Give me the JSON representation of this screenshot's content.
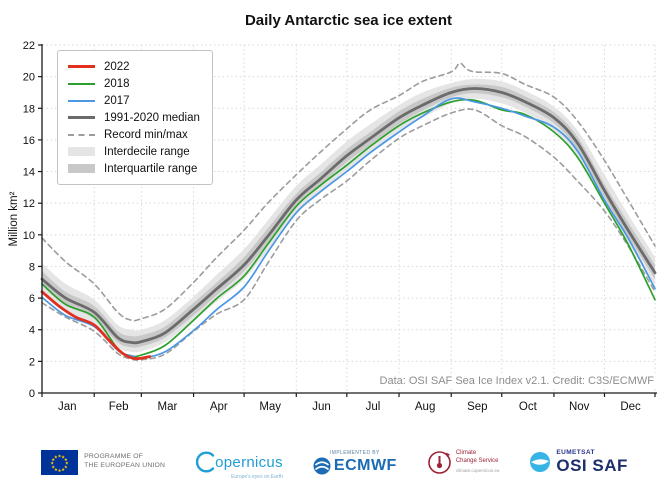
{
  "page": {
    "credit": "Data: OSI SAF Sea Ice Index v2.1. Credit: C3S/ECMWF"
  },
  "chart_data": {
    "type": "line",
    "title": "Daily Antarctic sea ice extent",
    "ylabel": "Million km²",
    "ylim": [
      0,
      22
    ],
    "ytick_step": 2,
    "grid": true,
    "legend_position": "top-left",
    "x_months": [
      "Jan",
      "Feb",
      "Mar",
      "Apr",
      "May",
      "Jun",
      "Jul",
      "Aug",
      "Sep",
      "Oct",
      "Nov",
      "Dec"
    ],
    "month_boundaries": [
      0,
      31,
      59,
      90,
      120,
      151,
      181,
      212,
      243,
      273,
      304,
      334,
      364
    ],
    "month_label_days": [
      15,
      45.5,
      74.5,
      105,
      135.5,
      166,
      196.5,
      227.5,
      258.5,
      288.5,
      319,
      349.5
    ],
    "sample_days": [
      0,
      14,
      31,
      45,
      53,
      59,
      73,
      90,
      104,
      120,
      134,
      151,
      165,
      181,
      195,
      212,
      226,
      243,
      257,
      273,
      287,
      304,
      318,
      334,
      348,
      364
    ],
    "bands": [
      {
        "name": "Interdecile range",
        "fill": "#e5e5e5",
        "upper": [
          8.2,
          6.9,
          5.9,
          4.3,
          4.0,
          4.0,
          4.6,
          6.1,
          7.5,
          9.1,
          10.9,
          13.1,
          14.4,
          15.9,
          17.0,
          18.2,
          19.0,
          19.6,
          19.85,
          19.7,
          19.1,
          18.1,
          16.6,
          13.8,
          11.3,
          8.6
        ],
        "lower": [
          6.4,
          5.2,
          4.3,
          2.9,
          2.6,
          2.65,
          3.2,
          4.6,
          5.8,
          7.2,
          9.0,
          11.3,
          12.6,
          14.1,
          15.2,
          16.6,
          17.4,
          18.3,
          18.6,
          18.3,
          17.7,
          16.6,
          15.0,
          12.0,
          9.5,
          6.8
        ]
      },
      {
        "name": "Interquartile range",
        "fill": "#c8c8c8",
        "upper": [
          7.7,
          6.4,
          5.5,
          3.9,
          3.6,
          3.65,
          4.2,
          5.7,
          7.0,
          8.6,
          10.4,
          12.6,
          13.9,
          15.4,
          16.5,
          17.8,
          18.6,
          19.3,
          19.5,
          19.35,
          18.75,
          17.75,
          16.2,
          13.2,
          10.8,
          8.1
        ],
        "lower": [
          6.8,
          5.6,
          4.7,
          3.2,
          2.9,
          2.95,
          3.5,
          4.9,
          6.2,
          7.7,
          9.5,
          11.8,
          13.1,
          14.6,
          15.7,
          17.0,
          17.85,
          18.7,
          18.95,
          18.7,
          18.1,
          17.05,
          15.4,
          12.4,
          9.9,
          7.2
        ]
      }
    ],
    "series": [
      {
        "name": "Record max",
        "color": "#9c9c9c",
        "width": 1.6,
        "dash": "5 4",
        "days": [
          0,
          14,
          31,
          45,
          53,
          59,
          73,
          90,
          104,
          120,
          134,
          151,
          165,
          181,
          195,
          212,
          226,
          243,
          248,
          252,
          257,
          273,
          287,
          304,
          318,
          334,
          348,
          364
        ],
        "values": [
          9.8,
          8.3,
          6.9,
          5.1,
          4.6,
          4.7,
          5.3,
          7.0,
          8.6,
          10.3,
          12.0,
          13.8,
          15.2,
          16.7,
          17.9,
          18.8,
          19.7,
          20.3,
          20.85,
          20.5,
          20.3,
          20.2,
          19.5,
          18.7,
          17.2,
          14.7,
          12.2,
          9.3
        ]
      },
      {
        "name": "Record min",
        "color": "#9c9c9c",
        "width": 1.6,
        "dash": "5 4",
        "days": [
          0,
          14,
          31,
          45,
          53,
          59,
          73,
          90,
          104,
          120,
          134,
          151,
          165,
          181,
          195,
          212,
          226,
          243,
          257,
          273,
          287,
          304,
          318,
          334,
          348,
          364
        ],
        "values": [
          5.7,
          4.8,
          3.9,
          2.5,
          2.15,
          2.1,
          2.45,
          3.9,
          5.0,
          5.9,
          8.2,
          10.9,
          12.2,
          13.4,
          14.7,
          16.1,
          16.9,
          17.7,
          17.9,
          16.9,
          16.2,
          14.9,
          13.4,
          11.5,
          9.3,
          6.4
        ]
      },
      {
        "name": "1991-2020 median",
        "color": "#6b6b6b",
        "width": 2.8,
        "days": [
          0,
          14,
          31,
          45,
          53,
          59,
          73,
          90,
          104,
          120,
          134,
          151,
          165,
          181,
          195,
          212,
          226,
          243,
          257,
          273,
          287,
          304,
          318,
          334,
          348,
          364
        ],
        "values": [
          7.2,
          6.0,
          5.1,
          3.5,
          3.2,
          3.25,
          3.8,
          5.3,
          6.6,
          8.1,
          9.9,
          12.2,
          13.5,
          15.0,
          16.1,
          17.4,
          18.2,
          19.0,
          19.25,
          19.0,
          18.4,
          17.4,
          15.8,
          12.8,
          10.3,
          7.6
        ]
      },
      {
        "name": "2018",
        "color": "#2ca02c",
        "width": 1.7,
        "days": [
          0,
          14,
          31,
          45,
          53,
          59,
          73,
          90,
          104,
          120,
          134,
          151,
          165,
          181,
          195,
          212,
          226,
          243,
          257,
          273,
          287,
          304,
          318,
          334,
          348,
          364
        ],
        "values": [
          6.9,
          5.6,
          4.8,
          2.8,
          2.35,
          2.4,
          3.0,
          4.6,
          6.0,
          7.4,
          9.4,
          11.8,
          13.1,
          14.4,
          15.6,
          16.9,
          17.7,
          18.4,
          18.5,
          17.9,
          17.6,
          16.5,
          14.9,
          12.0,
          9.4,
          5.9
        ]
      },
      {
        "name": "2017",
        "color": "#4a97e4",
        "width": 1.7,
        "days": [
          0,
          14,
          31,
          45,
          53,
          59,
          73,
          90,
          104,
          120,
          134,
          151,
          165,
          181,
          195,
          212,
          226,
          243,
          257,
          273,
          287,
          304,
          318,
          334,
          348,
          364
        ],
        "values": [
          6.05,
          4.9,
          4.2,
          2.7,
          2.35,
          2.2,
          2.6,
          3.95,
          5.3,
          6.7,
          8.9,
          11.4,
          12.7,
          14.0,
          15.2,
          16.5,
          17.5,
          18.6,
          18.4,
          18.0,
          17.5,
          16.8,
          15.3,
          12.2,
          9.8,
          6.6
        ]
      },
      {
        "name": "2022",
        "color": "#e03020",
        "width": 2.8,
        "days": [
          0,
          10,
          20,
          31,
          40,
          48,
          54,
          59,
          64
        ],
        "values": [
          6.4,
          5.5,
          4.8,
          4.3,
          3.3,
          2.5,
          2.2,
          2.2,
          2.3
        ]
      }
    ],
    "legend": [
      {
        "label": "2022",
        "type": "line",
        "color": "#e03020",
        "width": 3
      },
      {
        "label": "2018",
        "type": "line",
        "color": "#2ca02c",
        "width": 2
      },
      {
        "label": "2017",
        "type": "line",
        "color": "#4a97e4",
        "width": 2
      },
      {
        "label": "1991-2020 median",
        "type": "line",
        "color": "#6b6b6b",
        "width": 3
      },
      {
        "label": "Record min/max",
        "type": "dashed",
        "color": "#9c9c9c",
        "width": 2
      },
      {
        "label": "Interdecile range",
        "type": "fill",
        "color": "#e5e5e5"
      },
      {
        "label": "Interquartile range",
        "type": "fill",
        "color": "#c8c8c8"
      }
    ]
  },
  "footer": {
    "eu": {
      "line1": "PROGRAMME OF",
      "line2": "THE EUROPEAN UNION"
    },
    "copernicus": {
      "text": "opernicus",
      "tagline": "Europe's eyes on Earth"
    },
    "ecmwf": {
      "small": "IMPLEMENTED BY",
      "text": "ECMWF"
    },
    "c3s": {
      "line1": "Climate",
      "line2": "Change Service",
      "tagline": "climate.copernicus.eu"
    },
    "osisaf": {
      "small": "EUMETSAT",
      "text": "OSI SAF"
    }
  }
}
